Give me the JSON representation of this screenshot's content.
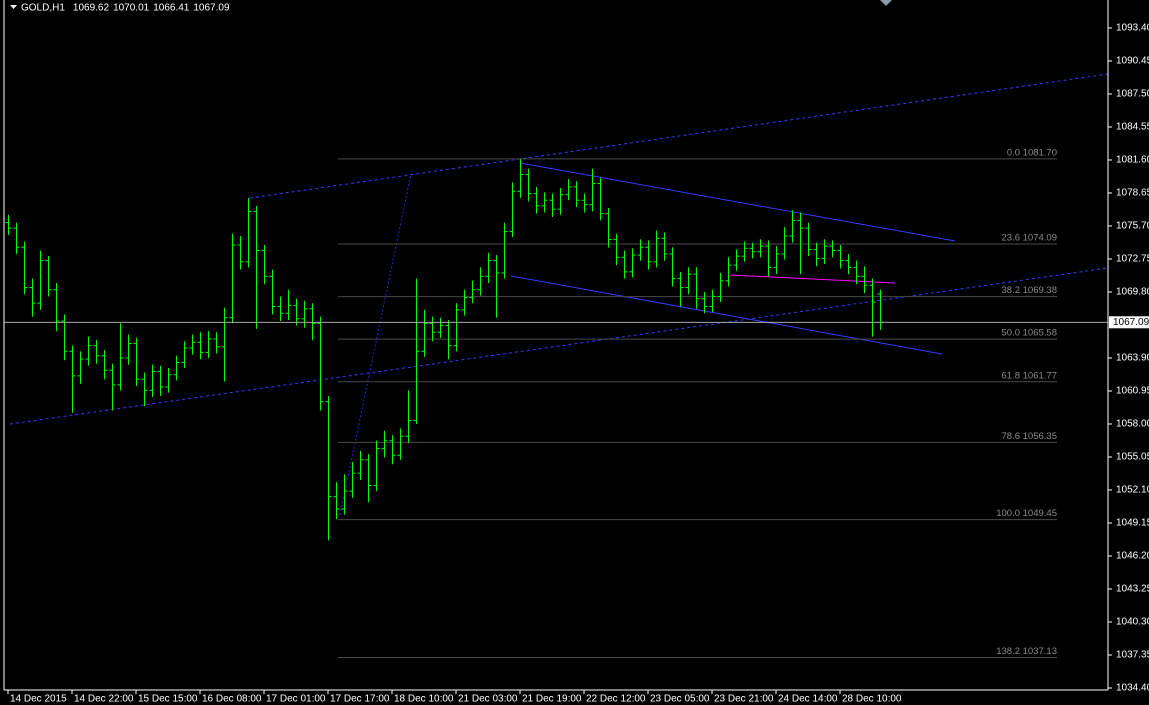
{
  "chart_data": {
    "type": "ohlc",
    "symbol": "GOLD,H1",
    "color": "#00ff00",
    "categories": [
      "14 Dec 2015",
      null,
      null,
      null,
      null,
      null,
      null,
      null,
      "14 Dec 22:00",
      null,
      null,
      null,
      null,
      null,
      null,
      null,
      "15 Dec 15:00",
      null,
      null,
      null,
      null,
      null,
      null,
      null,
      "16 Dec 08:00",
      null,
      null,
      null,
      null,
      null,
      null,
      null,
      "17 Dec 01:00",
      null,
      null,
      null,
      null,
      null,
      null,
      null,
      "17 Dec 17:00",
      null,
      null,
      null,
      null,
      null,
      null,
      null,
      "18 Dec 10:00",
      null,
      null,
      null,
      null,
      null,
      null,
      null,
      "21 Dec 03:00",
      null,
      null,
      null,
      null,
      null,
      null,
      null,
      "21 Dec 19:00",
      null,
      null,
      null,
      null,
      null,
      null,
      null,
      "22 Dec 12:00",
      null,
      null,
      null,
      null,
      null,
      null,
      null,
      "23 Dec 05:00",
      null,
      null,
      null,
      null,
      null,
      null,
      null,
      "23 Dec 21:00",
      null,
      null,
      null,
      null,
      null,
      null,
      null,
      "24 Dec 14:00",
      null,
      null,
      null,
      null,
      null,
      null,
      null,
      "28 Dec 10:00",
      null,
      null,
      null,
      null,
      null
    ],
    "open": [
      1076.0,
      1075.5,
      1073.8,
      1070.2,
      1068.8,
      1072.6,
      1070.0,
      1067.2,
      1064.5,
      1062.3,
      1063.8,
      1065.0,
      1064.1,
      1062.8,
      1061.5,
      1063.9,
      1065.2,
      1062.0,
      1061.0,
      1062.7,
      1061.3,
      1062.4,
      1063.5,
      1064.8,
      1065.3,
      1064.4,
      1065.6,
      1064.9,
      1067.5,
      1074.0,
      1072.5,
      1077.0,
      1073.5,
      1071.2,
      1068.5,
      1067.9,
      1068.6,
      1067.4,
      1068.3,
      1067.0,
      1060.0,
      1051.5,
      1050.4,
      1052.0,
      1053.6,
      1054.8,
      1052.5,
      1055.8,
      1056.5,
      1055.2,
      1056.9,
      1058.3,
      1064.5,
      1067.0,
      1066.2,
      1066.8,
      1065.0,
      1068.2,
      1069.3,
      1070.0,
      1071.2,
      1072.6,
      1071.5,
      1075.2,
      1078.8,
      1080.3,
      1078.6,
      1077.5,
      1078.0,
      1077.2,
      1078.5,
      1079.2,
      1078.0,
      1077.6,
      1079.5,
      1076.8,
      1074.5,
      1072.9,
      1071.6,
      1073.1,
      1073.8,
      1072.5,
      1074.6,
      1073.2,
      1071.0,
      1070.2,
      1071.4,
      1069.2,
      1068.5,
      1069.4,
      1070.8,
      1072.2,
      1073.0,
      1073.7,
      1073.4,
      1073.9,
      1072.0,
      1073.2,
      1074.8,
      1076.2,
      1075.5,
      1073.6,
      1072.8,
      1073.9,
      1073.5,
      1072.6,
      1072.0,
      1071.2,
      1070.4,
      1069.62
    ],
    "high": [
      1076.7,
      1076.0,
      1074.3,
      1071.0,
      1073.5,
      1073.0,
      1070.6,
      1067.8,
      1065.0,
      1064.5,
      1065.8,
      1065.5,
      1064.6,
      1063.4,
      1067.0,
      1066.0,
      1065.7,
      1062.6,
      1063.3,
      1063.2,
      1063.0,
      1064.1,
      1065.4,
      1066.0,
      1066.2,
      1066.3,
      1066.2,
      1068.4,
      1075.0,
      1074.8,
      1078.2,
      1077.5,
      1074.0,
      1071.8,
      1069.4,
      1070.0,
      1069.2,
      1069.0,
      1068.8,
      1067.6,
      1060.5,
      1052.8,
      1053.5,
      1054.6,
      1055.6,
      1055.3,
      1056.5,
      1057.4,
      1057.0,
      1057.6,
      1061.0,
      1071.0,
      1068.2,
      1067.6,
      1067.5,
      1067.3,
      1068.8,
      1070.0,
      1070.8,
      1072.0,
      1073.3,
      1073.1,
      1076.0,
      1079.6,
      1081.7,
      1080.8,
      1079.2,
      1078.7,
      1078.6,
      1079.1,
      1079.9,
      1079.7,
      1078.6,
      1080.8,
      1080.0,
      1077.3,
      1075.0,
      1073.5,
      1073.7,
      1074.5,
      1074.4,
      1075.3,
      1075.1,
      1073.8,
      1071.6,
      1072.0,
      1072.0,
      1069.8,
      1070.0,
      1071.5,
      1072.9,
      1073.6,
      1074.3,
      1074.2,
      1074.5,
      1074.4,
      1073.9,
      1075.6,
      1077.1,
      1076.9,
      1076.0,
      1074.2,
      1074.5,
      1074.4,
      1074.0,
      1073.2,
      1072.6,
      1072.1,
      1071.0,
      1070.01
    ],
    "low": [
      1074.9,
      1073.2,
      1069.6,
      1067.6,
      1068.2,
      1069.4,
      1066.3,
      1063.7,
      1059.0,
      1061.6,
      1063.2,
      1063.4,
      1062.0,
      1059.2,
      1061.0,
      1063.3,
      1061.4,
      1059.6,
      1060.4,
      1060.5,
      1060.8,
      1061.9,
      1063.0,
      1064.2,
      1063.8,
      1063.9,
      1064.3,
      1061.8,
      1067.0,
      1071.8,
      1072.0,
      1066.5,
      1070.5,
      1067.8,
      1067.2,
      1067.3,
      1066.8,
      1066.6,
      1065.5,
      1059.2,
      1047.6,
      1049.5,
      1049.9,
      1051.4,
      1053.0,
      1051.0,
      1052.0,
      1055.0,
      1054.4,
      1054.8,
      1056.3,
      1058.0,
      1064.0,
      1065.4,
      1065.7,
      1063.8,
      1064.5,
      1067.7,
      1068.8,
      1069.5,
      1070.6,
      1067.5,
      1071.0,
      1074.7,
      1078.2,
      1077.9,
      1076.8,
      1076.9,
      1076.5,
      1076.7,
      1078.0,
      1077.4,
      1076.9,
      1077.0,
      1076.2,
      1073.8,
      1072.2,
      1071.0,
      1071.1,
      1072.6,
      1071.8,
      1072.0,
      1072.6,
      1070.3,
      1068.5,
      1069.6,
      1068.3,
      1067.9,
      1068.0,
      1068.9,
      1070.3,
      1071.7,
      1072.5,
      1072.8,
      1072.9,
      1071.2,
      1071.4,
      1072.7,
      1074.2,
      1071.4,
      1073.0,
      1072.1,
      1072.3,
      1072.9,
      1071.9,
      1071.4,
      1070.5,
      1069.7,
      1065.8,
      1066.41
    ],
    "close": [
      1075.5,
      1073.8,
      1070.2,
      1068.8,
      1072.6,
      1070.0,
      1067.2,
      1064.5,
      1062.3,
      1063.8,
      1065.0,
      1064.1,
      1062.8,
      1061.5,
      1063.9,
      1065.2,
      1062.0,
      1061.0,
      1062.7,
      1061.3,
      1062.4,
      1063.5,
      1064.8,
      1065.3,
      1064.4,
      1065.6,
      1064.9,
      1067.5,
      1074.0,
      1072.5,
      1077.0,
      1073.5,
      1071.2,
      1068.5,
      1067.9,
      1068.6,
      1067.4,
      1068.3,
      1067.0,
      1060.0,
      1051.5,
      1050.4,
      1052.0,
      1053.6,
      1054.8,
      1052.5,
      1055.8,
      1056.5,
      1055.2,
      1056.9,
      1058.3,
      1064.5,
      1067.0,
      1066.2,
      1066.8,
      1065.0,
      1068.2,
      1069.3,
      1070.0,
      1071.2,
      1072.6,
      1071.5,
      1075.2,
      1078.8,
      1080.3,
      1078.6,
      1077.5,
      1078.0,
      1077.2,
      1078.5,
      1079.2,
      1078.0,
      1077.6,
      1079.5,
      1076.8,
      1074.5,
      1072.9,
      1071.6,
      1073.1,
      1073.8,
      1072.5,
      1074.6,
      1073.2,
      1071.0,
      1070.2,
      1071.4,
      1069.2,
      1068.5,
      1069.4,
      1070.8,
      1072.2,
      1073.0,
      1073.7,
      1073.4,
      1073.9,
      1072.0,
      1073.2,
      1074.8,
      1076.2,
      1075.5,
      1073.6,
      1072.8,
      1073.9,
      1073.5,
      1072.6,
      1072.0,
      1071.2,
      1070.4,
      1068.9,
      1067.09
    ],
    "ylim": [
      1034.22,
      1095.9
    ],
    "yticks": [
      {
        "value": 1093.4,
        "label": "1093.40"
      },
      {
        "value": 1090.45,
        "label": "1090.45"
      },
      {
        "value": 1087.5,
        "label": "1087.50"
      },
      {
        "value": 1084.55,
        "label": "1084.55"
      },
      {
        "value": 1081.6,
        "label": "1081.60"
      },
      {
        "value": 1078.65,
        "label": "1078.65"
      },
      {
        "value": 1075.7,
        "label": "1075.70"
      },
      {
        "value": 1072.75,
        "label": "1072.75"
      },
      {
        "value": 1069.8,
        "label": "1069.80"
      },
      {
        "value": 1063.9,
        "label": "1063.90"
      },
      {
        "value": 1060.95,
        "label": "1060.95"
      },
      {
        "value": 1058,
        "label": "1058.00"
      },
      {
        "value": 1055.05,
        "label": "1055.05"
      },
      {
        "value": 1052.1,
        "label": "1052.10"
      },
      {
        "value": 1049.15,
        "label": "1049.15"
      },
      {
        "value": 1046.2,
        "label": "1046.20"
      },
      {
        "value": 1043.25,
        "label": "1043.25"
      },
      {
        "value": 1040.3,
        "label": "1040.30"
      },
      {
        "value": 1037.35,
        "label": "1037.35"
      },
      {
        "value": 1034.4,
        "label": "1034.40"
      }
    ],
    "fib_levels": [
      {
        "value": 1081.7,
        "label": "0.0  1081.70"
      },
      {
        "value": 1074.09,
        "label": "23.6  1074.09"
      },
      {
        "value": 1069.38,
        "label": "38.2  1069.38"
      },
      {
        "value": 1065.58,
        "label": "50.0  1065.58"
      },
      {
        "value": 1061.77,
        "label": "61.8  1061.77"
      },
      {
        "value": 1056.35,
        "label": "78.6  1056.35"
      },
      {
        "value": 1049.45,
        "label": "100.0  1049.45"
      },
      {
        "value": 1037.13,
        "label": "138.2  1037.13"
      }
    ]
  }
}
